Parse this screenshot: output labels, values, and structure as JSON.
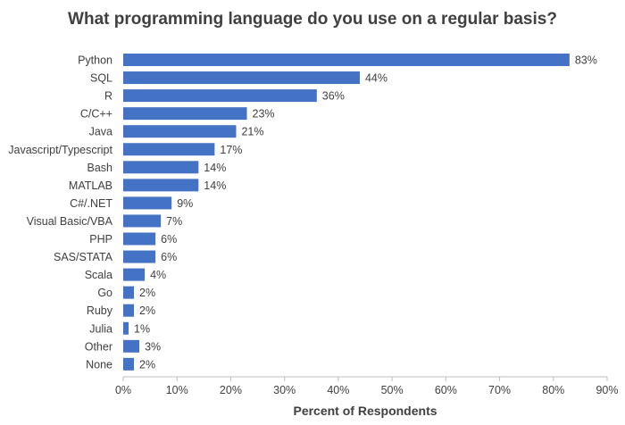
{
  "chart_data": {
    "type": "bar",
    "orientation": "horizontal",
    "title": "What programming language do you use on a regular basis?",
    "xlabel": "Percent of Respondents",
    "ylabel": "",
    "categories": [
      "Python",
      "SQL",
      "R",
      "C/C++",
      "Java",
      "Javascript/Typescript",
      "Bash",
      "MATLAB",
      "C#/.NET",
      "Visual Basic/VBA",
      "PHP",
      "SAS/STATA",
      "Scala",
      "Go",
      "Ruby",
      "Julia",
      "Other",
      "None"
    ],
    "values": [
      83,
      44,
      36,
      23,
      21,
      17,
      14,
      14,
      9,
      7,
      6,
      6,
      4,
      2,
      2,
      1,
      3,
      2
    ],
    "value_labels": [
      "83%",
      "44%",
      "36%",
      "23%",
      "21%",
      "17%",
      "14%",
      "14%",
      "9%",
      "7%",
      "6%",
      "6%",
      "4%",
      "2%",
      "2%",
      "1%",
      "3%",
      "2%"
    ],
    "xlim": [
      0,
      90
    ],
    "xticks": [
      0,
      10,
      20,
      30,
      40,
      50,
      60,
      70,
      80,
      90
    ],
    "xtick_labels": [
      "0%",
      "10%",
      "20%",
      "30%",
      "40%",
      "50%",
      "60%",
      "70%",
      "80%",
      "90%"
    ],
    "grid": false,
    "legend": "none",
    "bar_color": "#4472C4",
    "axis_color": "#BFBFBF",
    "text_color": "#404040"
  }
}
